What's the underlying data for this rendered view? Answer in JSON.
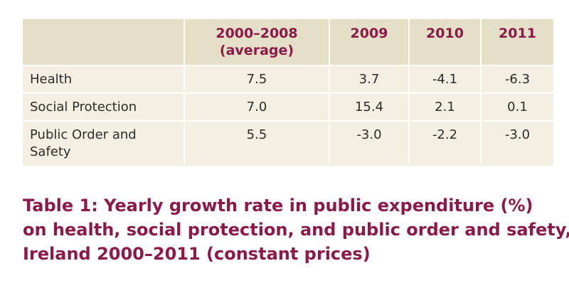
{
  "table": {
    "headers": [
      "",
      "2000–2008",
      "2009",
      "2010",
      "2011"
    ],
    "header_sub": "(average)",
    "rows": [
      {
        "label": "Health",
        "values": [
          "7.5",
          "3.7",
          "-4.1",
          "-6.3"
        ]
      },
      {
        "label": "Social Protection",
        "values": [
          "7.0",
          "15.4",
          "2.1",
          "0.1"
        ]
      },
      {
        "label_line1": "Public Order and",
        "label_line2": "Safety",
        "values": [
          "5.5",
          "-3.0",
          "-2.2",
          "-3.0"
        ]
      }
    ]
  },
  "caption": {
    "line1": "Table 1: Yearly growth rate in public expenditure (%)",
    "line2": "on health, social protection, and public order and safety,",
    "line3": "Ireland 2000–2011 (constant prices)"
  },
  "colors": {
    "header_bg": "#e4dfc6",
    "body_bg": "#f3f0e3",
    "accent": "#8b1a4a"
  }
}
